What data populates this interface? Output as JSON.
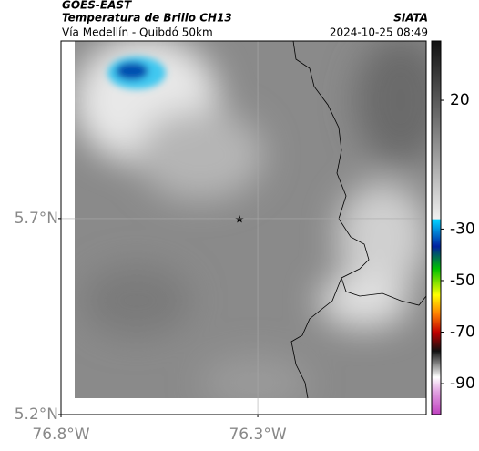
{
  "header": {
    "source": "GOES-EAST",
    "title": "Temperatura de Brillo CH13",
    "subtitle": "Vía Medellín - Quibdó 50km",
    "org": "SIATA",
    "datetime": "2024-10-25 08:49"
  },
  "map": {
    "xlim": [
      -76.8,
      -75.872
    ],
    "ylim": [
      5.2,
      6.153
    ],
    "xticks": [
      {
        "value": -76.8,
        "label": "76.8°W"
      },
      {
        "value": -76.3,
        "label": "76.3°W"
      }
    ],
    "yticks": [
      {
        "value": 5.2,
        "label": "5.2°N"
      },
      {
        "value": 5.7,
        "label": "5.7°N"
      }
    ],
    "grid": true
  },
  "colorbar": {
    "clim": [
      -102,
      43
    ],
    "ticks": [
      20,
      -30,
      -50,
      -70,
      -90
    ]
  }
}
